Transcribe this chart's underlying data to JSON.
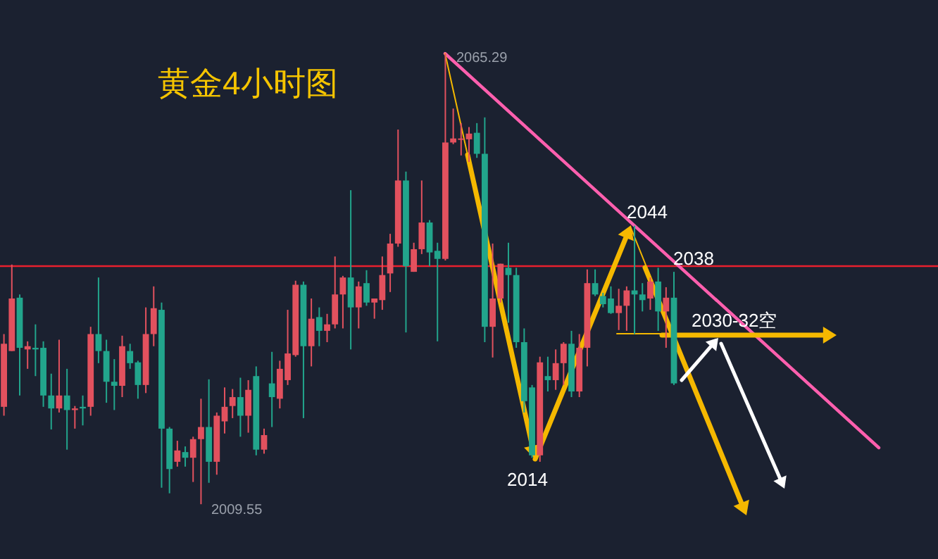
{
  "chart_data": {
    "type": "candlestick",
    "title": "黄金4小时图",
    "categories": [
      null,
      null,
      null,
      null,
      null,
      null,
      null,
      null,
      null,
      null,
      null,
      null,
      null,
      null,
      null,
      null,
      null,
      null,
      null,
      null,
      null,
      null,
      null,
      null,
      null,
      null,
      null,
      null,
      null,
      null,
      null,
      null,
      null,
      null,
      null,
      null,
      null,
      null,
      null,
      null,
      null,
      null,
      null,
      null,
      null,
      null,
      null,
      null,
      null,
      null,
      null,
      null,
      null,
      null,
      null,
      null,
      null,
      null,
      null,
      null,
      null,
      null,
      null,
      null,
      null,
      null,
      null,
      null,
      null,
      null,
      null,
      null,
      null,
      null,
      null,
      null,
      null,
      null,
      null,
      null,
      null,
      null,
      null,
      null,
      null,
      null,
      null,
      null,
      null,
      null,
      null,
      null,
      null,
      null,
      null,
      null,
      null,
      null,
      null,
      null,
      null,
      null,
      null,
      null,
      null,
      null,
      null,
      null,
      null,
      null,
      null,
      null,
      null,
      null,
      null,
      null,
      null,
      null,
      null
    ],
    "ohlc": [
      [
        2021.6,
        2030.6,
        2020.5,
        2029.4
      ],
      [
        2028.5,
        2039.2,
        2028.5,
        2035.0
      ],
      [
        2035.1,
        2035.5,
        2023.0,
        2028.9
      ],
      [
        2028.7,
        2029.7,
        2026.3,
        2029.1
      ],
      [
        2028.9,
        2031.8,
        2025.4,
        2028.7
      ],
      [
        2028.9,
        2029.7,
        2021.6,
        2023.0
      ],
      [
        2023.0,
        2025.7,
        2018.8,
        2021.4
      ],
      [
        2021.4,
        2029.9,
        2020.9,
        2023.0
      ],
      [
        2023.0,
        2026.3,
        2016.3,
        2021.2
      ],
      [
        2021.2,
        2021.7,
        2018.9,
        2021.4
      ],
      [
        2021.6,
        2023.0,
        2019.3,
        2021.4
      ],
      [
        2021.6,
        2031.5,
        2020.5,
        2030.6
      ],
      [
        2030.6,
        2037.6,
        2027.0,
        2028.5
      ],
      [
        2028.5,
        2029.9,
        2022.1,
        2024.7
      ],
      [
        2024.7,
        2027.5,
        2021.2,
        2024.2
      ],
      [
        2024.2,
        2030.4,
        2022.8,
        2029.1
      ],
      [
        2028.5,
        2029.4,
        2026.3,
        2027.0
      ],
      [
        2027.1,
        2027.3,
        2022.6,
        2024.3
      ],
      [
        2024.3,
        2033.9,
        2023.3,
        2030.6
      ],
      [
        2030.6,
        2036.5,
        2029.1,
        2033.8
      ],
      [
        2033.6,
        2034.5,
        2011.6,
        2018.9
      ],
      [
        2018.9,
        2019.1,
        2010.9,
        2013.9
      ],
      [
        2014.8,
        2017.4,
        2014.2,
        2016.2
      ],
      [
        2016.0,
        2016.7,
        2014.2,
        2015.3
      ],
      [
        2015.3,
        2017.9,
        2012.3,
        2017.6
      ],
      [
        2017.6,
        2022.6,
        2009.55,
        2019.1
      ],
      [
        2019.1,
        2025.0,
        2012.2,
        2014.8
      ],
      [
        2014.8,
        2020.9,
        2013.2,
        2020.5
      ],
      [
        2019.8,
        2024.0,
        2018.3,
        2021.6
      ],
      [
        2021.7,
        2023.8,
        2020.2,
        2022.8
      ],
      [
        2022.8,
        2025.2,
        2017.9,
        2020.5
      ],
      [
        2020.5,
        2024.9,
        2018.4,
        2023.7
      ],
      [
        2025.4,
        2026.6,
        2015.6,
        2016.3
      ],
      [
        2016.3,
        2018.9,
        2015.8,
        2018.1
      ],
      [
        2024.5,
        2028.4,
        2019.1,
        2022.8
      ],
      [
        2022.6,
        2027.3,
        2021.4,
        2026.3
      ],
      [
        2024.9,
        2033.6,
        2024.3,
        2028.2
      ],
      [
        2028.0,
        2037.2,
        2027.8,
        2036.7
      ],
      [
        2036.7,
        2037.1,
        2020.2,
        2029.1
      ],
      [
        2029.1,
        2035.0,
        2026.6,
        2032.5
      ],
      [
        2032.7,
        2033.9,
        2029.1,
        2031.0
      ],
      [
        2031.0,
        2033.1,
        2029.6,
        2031.8
      ],
      [
        2031.8,
        2040.2,
        2031.3,
        2035.5
      ],
      [
        2035.5,
        2037.8,
        2031.3,
        2037.6
      ],
      [
        2037.6,
        2048.4,
        2028.7,
        2033.9
      ],
      [
        2033.9,
        2037.1,
        2031.3,
        2036.5
      ],
      [
        2036.9,
        2038.5,
        2034.1,
        2034.5
      ],
      [
        2034.5,
        2035.0,
        2032.5,
        2035.0
      ],
      [
        2034.8,
        2040.2,
        2033.6,
        2037.9
      ],
      [
        2038.1,
        2043.0,
        2035.8,
        2041.8
      ],
      [
        2041.8,
        2055.9,
        2041.4,
        2049.6
      ],
      [
        2049.6,
        2050.7,
        2030.8,
        2039.0
      ],
      [
        2038.3,
        2041.9,
        2038.3,
        2041.1
      ],
      [
        2041.1,
        2049.6,
        2040.5,
        2044.4
      ],
      [
        2044.4,
        2044.7,
        2039.0,
        2040.7
      ],
      [
        2040.9,
        2041.9,
        2029.7,
        2039.9
      ],
      [
        2039.9,
        2065.29,
        2039.7,
        2054.3
      ],
      [
        2054.3,
        2058.5,
        2054.1,
        2054.8
      ],
      [
        2054.7,
        2056.7,
        2052.7,
        2054.8
      ],
      [
        2054.7,
        2056.2,
        2051.9,
        2055.4
      ],
      [
        2055.5,
        2056.7,
        2052.4,
        2052.9
      ],
      [
        2052.9,
        2057.4,
        2029.6,
        2031.5
      ],
      [
        2031.5,
        2041.8,
        2027.7,
        2035.0
      ],
      [
        2035.0,
        2039.3,
        2034.5,
        2039.3
      ],
      [
        2038.8,
        2041.9,
        2032.0,
        2037.9
      ],
      [
        2037.9,
        2038.8,
        2028.9,
        2029.6
      ],
      [
        2029.6,
        2031.3,
        2020.9,
        2022.3
      ],
      [
        2024.0,
        2024.3,
        2015.3,
        2015.6
      ],
      [
        2015.6,
        2027.8,
        2014.8,
        2027.1
      ],
      [
        2025.4,
        2027.8,
        2023.5,
        2024.9
      ],
      [
        2024.9,
        2028.7,
        2023.7,
        2027.0
      ],
      [
        2027.0,
        2029.6,
        2024.3,
        2029.4
      ],
      [
        2029.4,
        2031.0,
        2022.8,
        2023.5
      ],
      [
        2023.5,
        2030.6,
        2022.8,
        2028.9
      ],
      [
        2028.9,
        2038.6,
        2026.6,
        2036.9
      ],
      [
        2036.9,
        2038.6,
        2035.3,
        2035.5
      ],
      [
        2035.3,
        2035.7,
        2033.9,
        2034.3
      ],
      [
        2035.0,
        2036.5,
        2033.1,
        2033.2
      ],
      [
        2033.2,
        2036.2,
        2031.1,
        2034.1
      ],
      [
        2034.1,
        2036.5,
        2031.0,
        2036.0
      ],
      [
        2036.0,
        2044.0,
        2030.6,
        2035.5
      ],
      [
        2035.5,
        2036.9,
        2033.4,
        2034.8
      ],
      [
        2035.0,
        2037.6,
        2033.6,
        2037.1
      ],
      [
        2037.1,
        2038.8,
        2031.0,
        2033.4
      ],
      [
        2033.4,
        2036.4,
        2028.9,
        2035.1
      ],
      [
        2035.1,
        2038.3,
        2024.3,
        2024.5
      ],
      null,
      null,
      null,
      null,
      null,
      null,
      null,
      null,
      null,
      null,
      null,
      null,
      null,
      null,
      null,
      null,
      null,
      null,
      null,
      null,
      null,
      null,
      null,
      null,
      null,
      null,
      null,
      null,
      null,
      null,
      null,
      null,
      null
    ],
    "colors": [
      "#e2515e",
      "#e2515e",
      "#22a58c",
      "#e2515e",
      "#22a58c",
      "#22a58c",
      "#22a58c",
      "#e2515e",
      "#22a58c",
      "#e2515e",
      "#22a58c",
      "#e2515e",
      "#22a58c",
      "#22a58c",
      "#22a58c",
      "#e2515e",
      "#22a58c",
      "#22a58c",
      "#e2515e",
      "#e2515e",
      "#22a58c",
      "#22a58c",
      "#e2515e",
      "#22a58c",
      "#e2515e",
      "#e2515e",
      "#22a58c",
      "#e2515e",
      "#e2515e",
      "#e2515e",
      "#22a58c",
      "#e2515e",
      "#22a58c",
      "#e2515e",
      "#22a58c",
      "#e2515e",
      "#e2515e",
      "#e2515e",
      "#22a58c",
      "#e2515e",
      "#22a58c",
      "#e2515e",
      "#e2515e",
      "#e2515e",
      "#22a58c",
      "#e2515e",
      "#22a58c",
      "#e2515e",
      "#e2515e",
      "#e2515e",
      "#e2515e",
      "#22a58c",
      "#e2515e",
      "#e2515e",
      "#22a58c",
      "#22a58c",
      "#e2515e",
      "#e2515e",
      "#e2515e",
      "#e2515e",
      "#22a58c",
      "#22a58c",
      "#e2515e",
      "#e2515e",
      "#22a58c",
      "#22a58c",
      "#22a58c",
      "#22a58c",
      "#e2515e",
      "#22a58c",
      "#e2515e",
      "#e2515e",
      "#22a58c",
      "#e2515e",
      "#e2515e",
      "#22a58c",
      "#22a58c",
      "#22a58c",
      "#e2515e",
      "#e2515e",
      "#22a58c",
      "#22a58c",
      "#e2515e",
      "#22a58c",
      "#e2515e",
      "#22a58c",
      null,
      null,
      null,
      null,
      null,
      null,
      null,
      null,
      null,
      null,
      null,
      null,
      null,
      null,
      null,
      null,
      null,
      null,
      null,
      null,
      null,
      null,
      null,
      null,
      null,
      null,
      null,
      null,
      null,
      null,
      null,
      null,
      null
    ],
    "ref_lines": [
      {
        "axis": "y",
        "value": 2039.0,
        "color": "#e8202e"
      }
    ],
    "annotations": [
      "2065.29",
      "2009.55",
      "2044",
      "2038",
      "2014",
      "2030-32空"
    ]
  }
}
